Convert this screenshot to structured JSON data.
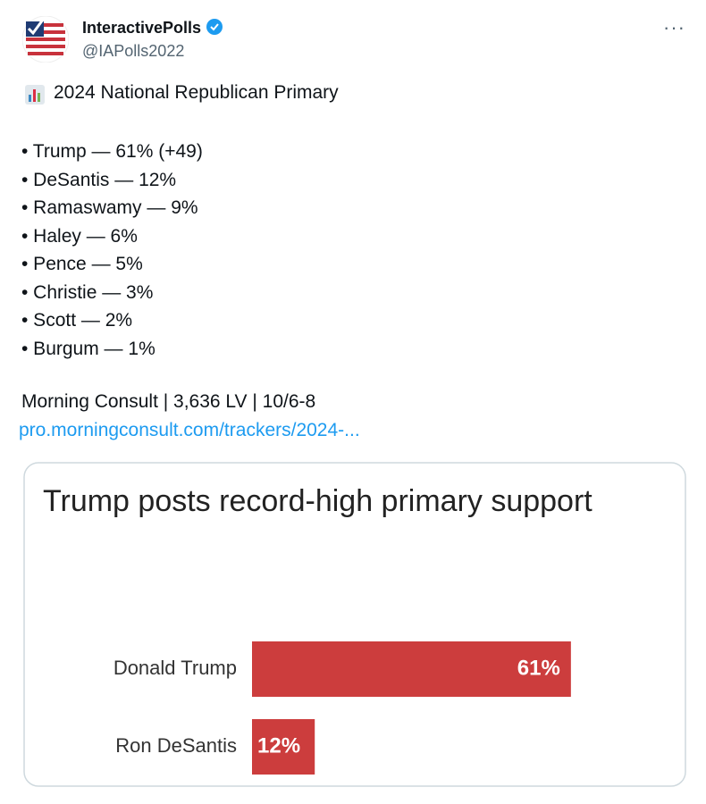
{
  "header": {
    "name": "InteractivePolls",
    "handle": "@IAPolls2022"
  },
  "tweet": {
    "heading": "2024 National Republican Primary",
    "items": [
      "• Trump — 61% (+49)",
      "• DeSantis — 12%",
      "• Ramaswamy — 9%",
      "• Haley — 6%",
      "• Pence — 5%",
      "• Christie — 3%",
      "• Scott — 2%",
      "• Burgum — 1%"
    ],
    "source": "Morning Consult | 3,636 LV | 10/6-8",
    "link": "pro.morningconsult.com/trackers/2024-..."
  },
  "chart_data": {
    "type": "bar",
    "orientation": "horizontal",
    "title": "Trump posts record-high primary support",
    "categories": [
      "Donald Trump",
      "Ron DeSantis"
    ],
    "values": [
      61,
      12
    ],
    "value_labels": [
      "61%",
      "12%"
    ],
    "color": "#cc3d3d"
  }
}
